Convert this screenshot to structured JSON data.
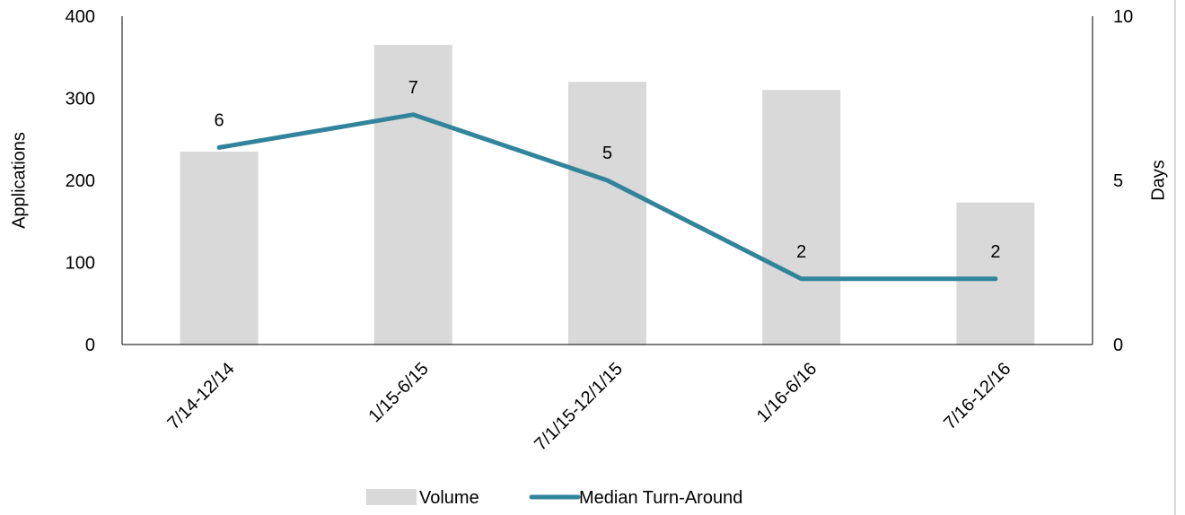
{
  "chart_data": {
    "type": "bar",
    "categories": [
      "7/14-12/14",
      "1/15-6/15",
      "7/1/15-12/1/15",
      "1/16-6/16",
      "7/16-12/16"
    ],
    "series": [
      {
        "name": "Volume",
        "type": "bar",
        "axis": "left",
        "color": "#d9d9d9",
        "values": [
          235,
          365,
          320,
          310,
          173
        ]
      },
      {
        "name": "Median Turn-Around",
        "type": "line",
        "axis": "right",
        "color": "#31849b",
        "values": [
          6,
          7,
          5,
          2,
          2
        ],
        "data_labels": [
          "6",
          "7",
          "5",
          "2",
          "2"
        ]
      }
    ],
    "ylabel": "Applications",
    "y2label": "Days",
    "ylim": [
      0,
      400
    ],
    "y2lim": [
      0,
      10
    ],
    "yticks": [
      "0",
      "100",
      "200",
      "300",
      "400"
    ],
    "y2ticks": [
      "0",
      "5",
      "10"
    ],
    "grid": false,
    "legend_position": "bottom"
  }
}
